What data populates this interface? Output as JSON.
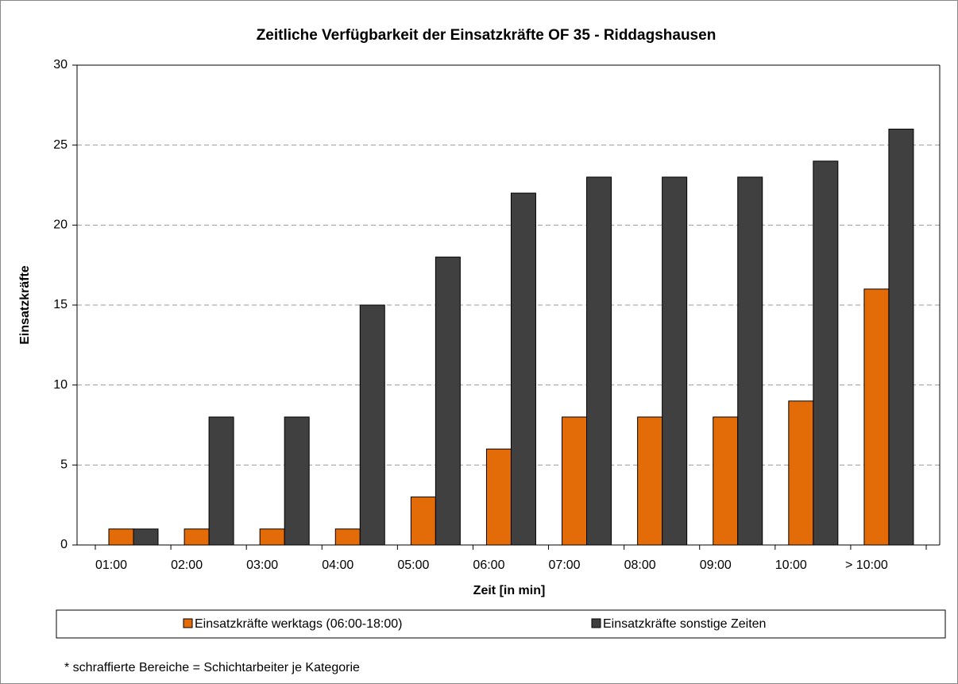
{
  "chart_data": {
    "type": "bar",
    "title": "Zeitliche Verfügbarkeit der Einsatzkräfte OF 35 - Riddagshausen",
    "x_label": "Zeit [in min]",
    "y_label": "Einsatzkräfte",
    "categories": [
      "01:00",
      "02:00",
      "03:00",
      "04:00",
      "05:00",
      "06:00",
      "07:00",
      "08:00",
      "09:00",
      "10:00",
      "> 10:00"
    ],
    "series": [
      {
        "name": "Einsatzkräfte werktags (06:00-18:00)",
        "color": "#e36c09",
        "values": [
          1,
          1,
          1,
          1,
          3,
          6,
          8,
          8,
          8,
          9,
          16
        ]
      },
      {
        "name": "Einsatzkräfte sonstige Zeiten",
        "color": "#404040",
        "values": [
          1,
          8,
          8,
          15,
          18,
          22,
          23,
          23,
          23,
          24,
          26
        ]
      }
    ],
    "ylim": [
      0,
      30
    ],
    "yticks": [
      0,
      5,
      10,
      15,
      20,
      25,
      30
    ],
    "grid": true,
    "legend": "bottom",
    "footnote": "* schraffierte Bereiche = Schichtarbeiter je Kategorie"
  }
}
